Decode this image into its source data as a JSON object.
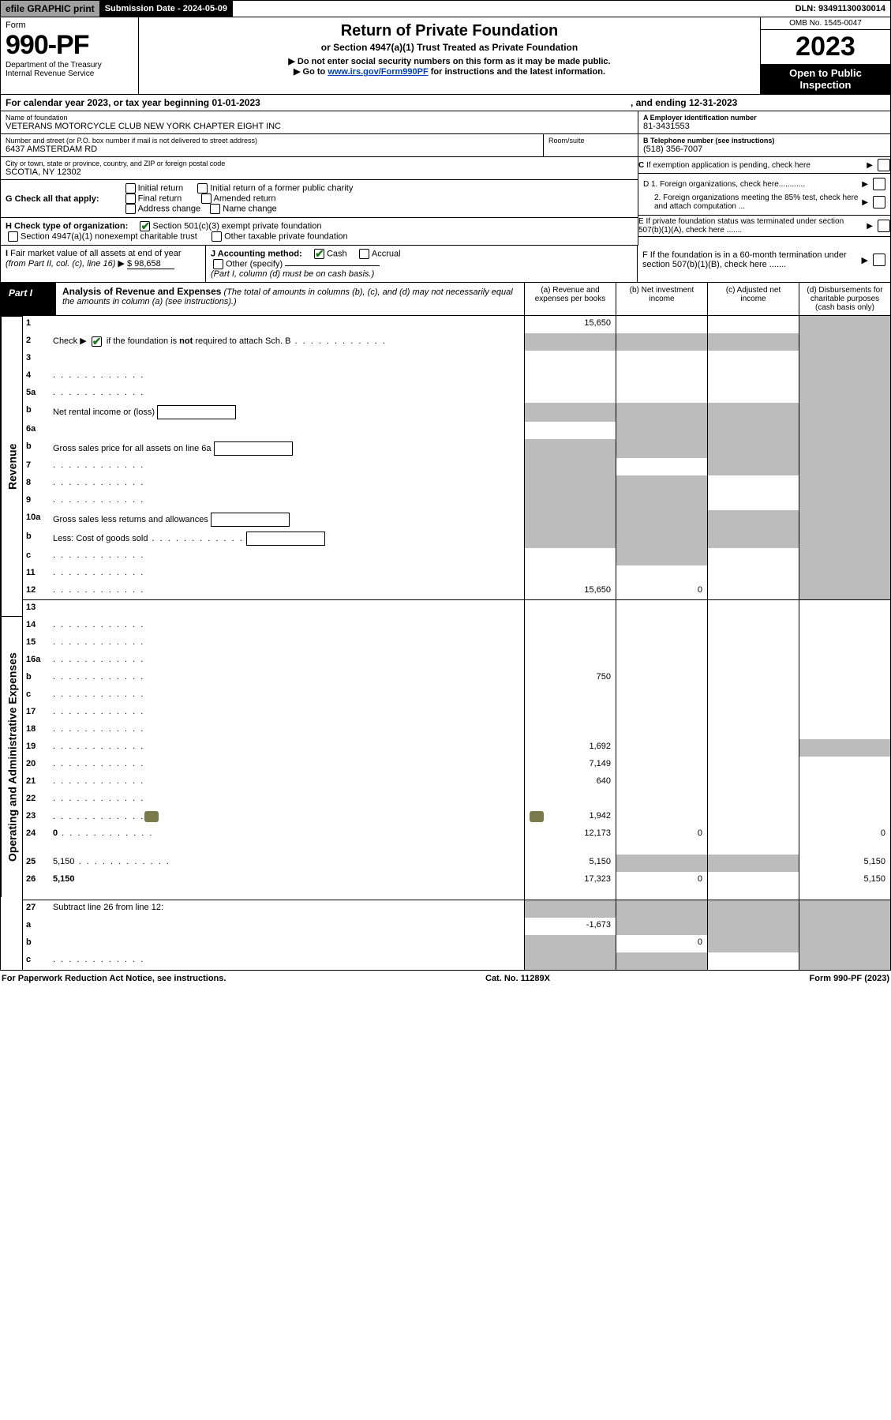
{
  "topbar": {
    "efile": "efile GRAPHIC print",
    "submission_label": "Submission Date - 2024-05-09",
    "dln": "DLN: 93491130030014"
  },
  "header": {
    "form_label": "Form",
    "form_number": "990-PF",
    "dept1": "Department of the Treasury",
    "dept2": "Internal Revenue Service",
    "title": "Return of Private Foundation",
    "subtitle": "or Section 4947(a)(1) Trust Treated as Private Foundation",
    "note1": "▶ Do not enter social security numbers on this form as it may be made public.",
    "note2_pre": "▶ Go to ",
    "note2_link": "www.irs.gov/Form990PF",
    "note2_post": " for instructions and the latest information.",
    "omb": "OMB No. 1545-0047",
    "year": "2023",
    "open": "Open to Public Inspection"
  },
  "calendar": {
    "text_a": "For calendar year 2023, or tax year beginning 01-01-2023",
    "text_b": ", and ending 12-31-2023"
  },
  "identity": {
    "name_label": "Name of foundation",
    "name": "VETERANS MOTORCYCLE CLUB NEW YORK CHAPTER EIGHT INC",
    "addr_label": "Number and street (or P.O. box number if mail is not delivered to street address)",
    "addr": "6437 AMSTERDAM RD",
    "room_label": "Room/suite",
    "room": "",
    "city_label": "City or town, state or province, country, and ZIP or foreign postal code",
    "city": "SCOTIA, NY  12302",
    "A_label": "A Employer identification number",
    "A_val": "81-3431553",
    "B_label": "B Telephone number (see instructions)",
    "B_val": "(518) 356-7007",
    "C_label": "C If exemption application is pending, check here"
  },
  "checks": {
    "G_label": "G Check all that apply:",
    "G_opts": [
      "Initial return",
      "Initial return of a former public charity",
      "Final return",
      "Amended return",
      "Address change",
      "Name change"
    ],
    "H_label": "H Check type of organization:",
    "H1": "Section 501(c)(3) exempt private foundation",
    "H2": "Section 4947(a)(1) nonexempt charitable trust",
    "H3": "Other taxable private foundation",
    "D1": "D 1. Foreign organizations, check here............",
    "D2": "2. Foreign organizations meeting the 85% test, check here and attach computation ...",
    "E": "E  If private foundation status was terminated under section 507(b)(1)(A), check here .......",
    "I_label": "I Fair market value of all assets at end of year (from Part II, col. (c), line 16) ▶",
    "I_val": "$  98,658",
    "J_label": "J Accounting method:",
    "J_cash": "Cash",
    "J_accrual": "Accrual",
    "J_other": "Other (specify)",
    "J_note": "(Part I, column (d) must be on cash basis.)",
    "F": "F  If the foundation is in a 60-month termination under section 507(b)(1)(B), check here ......."
  },
  "part1": {
    "tab": "Part I",
    "title": "Analysis of Revenue and Expenses",
    "title_note": "(The total of amounts in columns (b), (c), and (d) may not necessarily equal the amounts in column (a) (see instructions).)",
    "col_a": "(a)   Revenue and expenses per books",
    "col_b": "(b)   Net investment income",
    "col_c": "(c)   Adjusted net income",
    "col_d": "(d)  Disbursements for charitable purposes (cash basis only)"
  },
  "side": {
    "revenue": "Revenue",
    "expenses": "Operating and Administrative Expenses"
  },
  "rows": [
    {
      "n": "1",
      "d": "",
      "a": "15,650",
      "b": "",
      "c": "",
      "shade": [
        "d"
      ]
    },
    {
      "n": "2",
      "d": "Check ▶ ☑ if the foundation is not required to attach Sch. B",
      "dots": true,
      "shade": [
        "a",
        "b",
        "c",
        "d"
      ],
      "noamt": true
    },
    {
      "n": "3",
      "d": "",
      "a": "",
      "b": "",
      "c": "",
      "shade": [
        "d"
      ]
    },
    {
      "n": "4",
      "d": "",
      "dots": true,
      "a": "",
      "b": "",
      "c": "",
      "shade": [
        "d"
      ]
    },
    {
      "n": "5a",
      "d": "",
      "dots": true,
      "a": "",
      "b": "",
      "c": "",
      "shade": [
        "d"
      ]
    },
    {
      "n": "b",
      "d": "Net rental income or (loss)",
      "inlinebox": true,
      "shade": [
        "a",
        "b",
        "c",
        "d"
      ],
      "noamt": true
    },
    {
      "n": "6a",
      "d": "",
      "a": "",
      "b": "",
      "c": "",
      "shade": [
        "b",
        "c",
        "d"
      ]
    },
    {
      "n": "b",
      "d": "Gross sales price for all assets on line 6a",
      "inlinebox": true,
      "shade": [
        "a",
        "b",
        "c",
        "d"
      ],
      "noamt": true
    },
    {
      "n": "7",
      "d": "",
      "dots": true,
      "a": "",
      "b": "",
      "c": "",
      "shade": [
        "a",
        "c",
        "d"
      ]
    },
    {
      "n": "8",
      "d": "",
      "dots": true,
      "a": "",
      "b": "",
      "c": "",
      "shade": [
        "a",
        "b",
        "d"
      ]
    },
    {
      "n": "9",
      "d": "",
      "dots": true,
      "a": "",
      "b": "",
      "c": "",
      "shade": [
        "a",
        "b",
        "d"
      ]
    },
    {
      "n": "10a",
      "d": "Gross sales less returns and allowances",
      "inlinebox": true,
      "shade": [
        "a",
        "b",
        "c",
        "d"
      ],
      "noamt": true
    },
    {
      "n": "b",
      "d": "Less: Cost of goods sold",
      "dots": true,
      "inlinebox": true,
      "shade": [
        "a",
        "b",
        "c",
        "d"
      ],
      "noamt": true
    },
    {
      "n": "c",
      "d": "",
      "dots": true,
      "a": "",
      "b": "",
      "c": "",
      "shade": [
        "b",
        "d"
      ]
    },
    {
      "n": "11",
      "d": "",
      "dots": true,
      "a": "",
      "b": "",
      "c": "",
      "shade": [
        "d"
      ]
    },
    {
      "n": "12",
      "d": "",
      "dots": true,
      "bold": true,
      "a": "15,650",
      "b": "0",
      "c": "",
      "shade": [
        "d"
      ],
      "bb": true
    }
  ],
  "exp_rows": [
    {
      "n": "13",
      "d": "",
      "a": "",
      "b": "",
      "c": ""
    },
    {
      "n": "14",
      "d": "",
      "dots": true,
      "a": "",
      "b": "",
      "c": ""
    },
    {
      "n": "15",
      "d": "",
      "dots": true,
      "a": "",
      "b": "",
      "c": ""
    },
    {
      "n": "16a",
      "d": "",
      "dots": true,
      "a": "",
      "b": "",
      "c": ""
    },
    {
      "n": "b",
      "d": "",
      "dots": true,
      "a": "750",
      "b": "",
      "c": ""
    },
    {
      "n": "c",
      "d": "",
      "dots": true,
      "a": "",
      "b": "",
      "c": ""
    },
    {
      "n": "17",
      "d": "",
      "dots": true,
      "a": "",
      "b": "",
      "c": ""
    },
    {
      "n": "18",
      "d": "",
      "dots": true,
      "a": "",
      "b": "",
      "c": ""
    },
    {
      "n": "19",
      "d": "",
      "dots": true,
      "a": "1,692",
      "b": "",
      "c": "",
      "shade": [
        "d"
      ]
    },
    {
      "n": "20",
      "d": "",
      "dots": true,
      "a": "7,149",
      "b": "",
      "c": ""
    },
    {
      "n": "21",
      "d": "",
      "dots": true,
      "a": "640",
      "b": "",
      "c": ""
    },
    {
      "n": "22",
      "d": "",
      "dots": true,
      "a": "",
      "b": "",
      "c": ""
    },
    {
      "n": "23",
      "d": "",
      "dots": true,
      "icon": true,
      "a": "1,942",
      "b": "",
      "c": ""
    },
    {
      "n": "24",
      "d": "0",
      "dots": true,
      "bold": true,
      "a": "12,173",
      "b": "0",
      "c": "",
      "tall": true
    },
    {
      "n": "25",
      "d": "5,150",
      "dots": true,
      "a": "5,150",
      "b": "",
      "c": "",
      "shade": [
        "b",
        "c"
      ]
    },
    {
      "n": "26",
      "d": "5,150",
      "bold": true,
      "a": "17,323",
      "b": "0",
      "c": "",
      "tall": true,
      "bb": true
    }
  ],
  "final_rows": [
    {
      "n": "27",
      "d": "Subtract line 26 from line 12:",
      "shade": [
        "a",
        "b",
        "c",
        "d"
      ],
      "noamt": true
    },
    {
      "n": "a",
      "d": "",
      "bold": true,
      "a": "-1,673",
      "b": "",
      "c": "",
      "shade": [
        "b",
        "c",
        "d"
      ]
    },
    {
      "n": "b",
      "d": "",
      "bold": true,
      "a": "",
      "b": "0",
      "c": "",
      "shade": [
        "a",
        "c",
        "d"
      ]
    },
    {
      "n": "c",
      "d": "",
      "bold": true,
      "dots": true,
      "a": "",
      "b": "",
      "c": "",
      "shade": [
        "a",
        "b",
        "d"
      ]
    }
  ],
  "footer": {
    "left": "For Paperwork Reduction Act Notice, see instructions.",
    "center": "Cat. No. 11289X",
    "right": "Form 990-PF (2023)"
  },
  "colors": {
    "shade": "#bcbcbc",
    "link": "#0040c0",
    "check": "#1a7a1a"
  }
}
